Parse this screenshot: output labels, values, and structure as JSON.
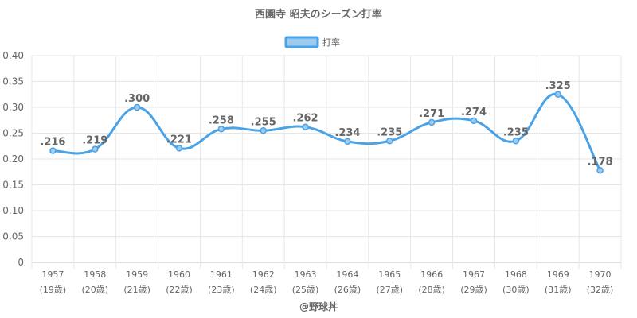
{
  "chart_data": {
    "type": "line",
    "title": "西園寺 昭夫のシーズン打率",
    "categories": [
      "1957",
      "1958",
      "1959",
      "1960",
      "1961",
      "1962",
      "1963",
      "1964",
      "1965",
      "1966",
      "1967",
      "1968",
      "1969",
      "1970"
    ],
    "sublabels": [
      "(19歳)",
      "(20歳)",
      "(21歳)",
      "(22歳)",
      "(23歳)",
      "(24歳)",
      "(25歳)",
      "(26歳)",
      "(27歳)",
      "(28歳)",
      "(29歳)",
      "(30歳)",
      "(31歳)",
      "(32歳)"
    ],
    "series": [
      {
        "name": "打率",
        "values": [
          0.216,
          0.219,
          0.3,
          0.221,
          0.258,
          0.255,
          0.262,
          0.234,
          0.235,
          0.271,
          0.274,
          0.235,
          0.325,
          0.178
        ],
        "labels": [
          ".216",
          ".219",
          ".300",
          ".221",
          ".258",
          ".255",
          ".262",
          ".234",
          ".235",
          ".271",
          ".274",
          ".235",
          ".325",
          ".178"
        ],
        "color": "#4aa3e6",
        "fill": "#9ccbf0"
      }
    ],
    "ylim": [
      0,
      0.4
    ],
    "yticks": [
      "0",
      "0.05",
      "0.10",
      "0.15",
      "0.20",
      "0.25",
      "0.30",
      "0.35",
      "0.40"
    ],
    "ytick_values": [
      0,
      0.05,
      0.1,
      0.15,
      0.2,
      0.25,
      0.3,
      0.35,
      0.4
    ],
    "grid": true,
    "legend": "top"
  },
  "credit": "@野球丼"
}
